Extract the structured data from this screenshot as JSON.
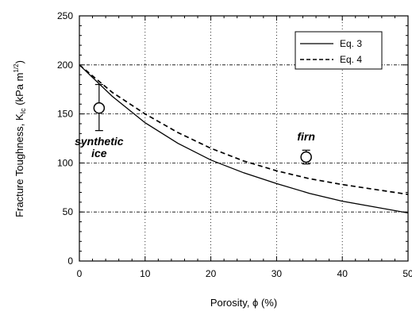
{
  "chart_data": {
    "type": "line",
    "title": "",
    "xlabel": "Porosity, ϕ (%)",
    "ylabel": "Fracture Toughness, K₁c (kPa m½)",
    "ylabel_parts": {
      "pre": "Fracture Toughness, K",
      "sub": "Ic",
      "mid": " (kPa m",
      "sup": "1/2",
      "post": ")"
    },
    "xlim": [
      0,
      50
    ],
    "ylim": [
      0,
      250
    ],
    "xticks": [
      0,
      10,
      20,
      30,
      40,
      50
    ],
    "yticks": [
      0,
      50,
      100,
      150,
      200,
      250
    ],
    "xtick_labels": [
      "0",
      "10",
      "20",
      "30",
      "40",
      "50"
    ],
    "ytick_labels": [
      "0",
      "50",
      "100",
      "150",
      "200",
      "250"
    ],
    "grid": true,
    "legend_position": "top-right",
    "series": [
      {
        "name": "Eq. 3",
        "style": "solid",
        "x": [
          0,
          5,
          10,
          15,
          20,
          25,
          30,
          35,
          40,
          45,
          50
        ],
        "y": [
          200,
          168,
          141,
          120,
          103,
          90,
          79,
          69,
          61,
          55,
          49
        ]
      },
      {
        "name": "Eq. 4",
        "style": "dashed",
        "x": [
          0,
          5,
          10,
          15,
          20,
          25,
          30,
          35,
          40,
          45,
          50
        ],
        "y": [
          200,
          172,
          150,
          131,
          115,
          102,
          92,
          84,
          78,
          73,
          68
        ]
      }
    ],
    "points": [
      {
        "label": "synthetic ice",
        "x": 3,
        "y": 156,
        "yerr_low": 133,
        "yerr_high": 180
      },
      {
        "label": "firn",
        "x": 34.5,
        "y": 106,
        "yerr_low": 99,
        "yerr_high": 113
      }
    ],
    "annotations": [
      {
        "text": "synthetic",
        "x": 3,
        "y": 118
      },
      {
        "text": "ice",
        "x": 3,
        "y": 106
      },
      {
        "text": "firn",
        "x": 34.5,
        "y": 123
      }
    ]
  }
}
